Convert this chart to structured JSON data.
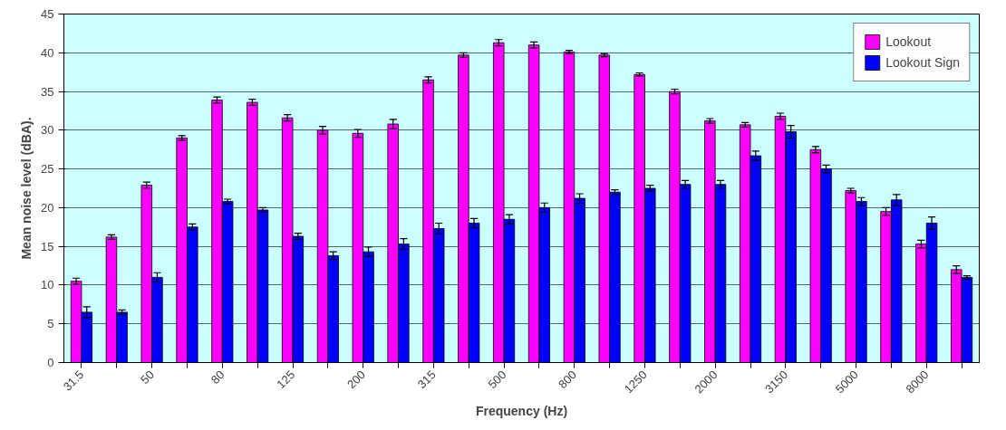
{
  "chart_data": {
    "type": "bar",
    "xlabel": "Frequency (Hz)",
    "ylabel": "Mean noise level (dBA).",
    "categories": [
      "31.5",
      null,
      "50",
      null,
      "80",
      null,
      "125",
      null,
      "200",
      null,
      "315",
      null,
      "500",
      null,
      "800",
      null,
      "1250",
      null,
      "2000",
      null,
      "3150",
      null,
      "5000",
      null,
      "8000",
      null
    ],
    "series": [
      {
        "name": "Lookout",
        "color": "#ff00ff",
        "values": [
          10.5,
          16.2,
          22.9,
          29,
          33.9,
          33.6,
          31.6,
          30,
          29.6,
          30.8,
          36.5,
          39.7,
          41.3,
          41,
          40.1,
          39.7,
          37.2,
          35,
          31.2,
          30.7,
          31.8,
          27.5,
          22.2,
          19.5,
          15.3,
          12
        ],
        "errors": [
          0.4,
          0.3,
          0.4,
          0.3,
          0.4,
          0.4,
          0.4,
          0.5,
          0.5,
          0.6,
          0.4,
          0.3,
          0.4,
          0.4,
          0.2,
          0.2,
          0.2,
          0.3,
          0.3,
          0.3,
          0.4,
          0.4,
          0.3,
          0.5,
          0.5,
          0.5
        ]
      },
      {
        "name": "Lookout Sign",
        "color": "#0000ff",
        "values": [
          6.5,
          6.5,
          11,
          17.5,
          20.8,
          19.7,
          16.3,
          13.8,
          14.3,
          15.3,
          17.3,
          18,
          18.5,
          20,
          21.2,
          22,
          22.5,
          23,
          23,
          26.7,
          29.8,
          25,
          20.8,
          21,
          18,
          11
        ],
        "errors": [
          0.7,
          0.3,
          0.6,
          0.4,
          0.3,
          0.3,
          0.4,
          0.5,
          0.6,
          0.7,
          0.7,
          0.6,
          0.6,
          0.6,
          0.6,
          0.3,
          0.4,
          0.5,
          0.5,
          0.6,
          0.8,
          0.5,
          0.5,
          0.7,
          0.8,
          0.2
        ]
      }
    ],
    "ylim": [
      0,
      45
    ],
    "yticks": [
      0,
      5,
      10,
      15,
      20,
      25,
      30,
      35,
      40,
      45
    ],
    "grid": "y",
    "legend": "top right"
  }
}
